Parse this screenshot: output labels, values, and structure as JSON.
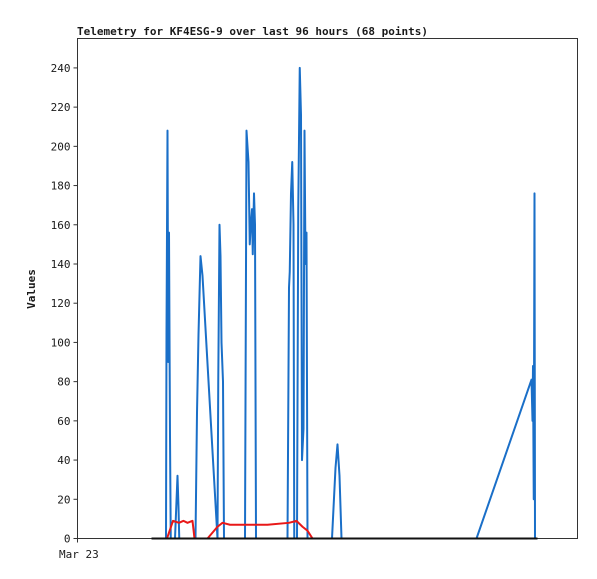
{
  "chart_data": {
    "type": "line",
    "title": "Telemetry for KF4ESG-9 over last 96 hours (68 points)",
    "xlabel": "",
    "ylabel": "Values",
    "x_tick_labels": [
      "Mar 23"
    ],
    "y_ticks": [
      0,
      20,
      40,
      60,
      80,
      100,
      120,
      140,
      160,
      180,
      200,
      220,
      240
    ],
    "xlim": [
      0,
      100
    ],
    "ylim": [
      0,
      255
    ],
    "grid": false,
    "legend": "none",
    "series": [
      {
        "color": "#1a6fc8",
        "points": [
          [
            14.8,
            0
          ],
          [
            17.7,
            0
          ],
          [
            17.8,
            104
          ],
          [
            18.0,
            208
          ],
          [
            18.15,
            90
          ],
          [
            18.3,
            156
          ],
          [
            18.5,
            52
          ],
          [
            18.65,
            0
          ],
          [
            19.5,
            0
          ],
          [
            19.75,
            16
          ],
          [
            20.0,
            32
          ],
          [
            20.2,
            16
          ],
          [
            20.35,
            0
          ],
          [
            23.6,
            0
          ],
          [
            23.9,
            64
          ],
          [
            24.2,
            104
          ],
          [
            24.6,
            144
          ],
          [
            25.0,
            134
          ],
          [
            27.1,
            40
          ],
          [
            28.0,
            0
          ],
          [
            28.15,
            80
          ],
          [
            28.4,
            160
          ],
          [
            28.6,
            144
          ],
          [
            28.8,
            100
          ],
          [
            29.1,
            80
          ],
          [
            29.3,
            0
          ],
          [
            33.5,
            0
          ],
          [
            33.8,
            208
          ],
          [
            34.05,
            198
          ],
          [
            34.2,
            192
          ],
          [
            34.45,
            150
          ],
          [
            34.65,
            160
          ],
          [
            34.9,
            168
          ],
          [
            35.05,
            145
          ],
          [
            35.3,
            176
          ],
          [
            35.5,
            160
          ],
          [
            35.7,
            0
          ],
          [
            42.0,
            0
          ],
          [
            42.3,
            128
          ],
          [
            42.45,
            136
          ],
          [
            42.7,
            176
          ],
          [
            42.95,
            192
          ],
          [
            43.2,
            160
          ],
          [
            43.35,
            0
          ],
          [
            43.9,
            0
          ],
          [
            44.15,
            168
          ],
          [
            44.45,
            240
          ],
          [
            44.7,
            216
          ],
          [
            44.9,
            40
          ],
          [
            45.2,
            56
          ],
          [
            45.4,
            208
          ],
          [
            45.6,
            140
          ],
          [
            45.8,
            156
          ],
          [
            46.0,
            0
          ],
          [
            50.9,
            0
          ],
          [
            51.6,
            36
          ],
          [
            52.0,
            48
          ],
          [
            52.4,
            32
          ],
          [
            52.8,
            0
          ],
          [
            79.8,
            0
          ],
          [
            90.8,
            81
          ],
          [
            91.0,
            60
          ],
          [
            91.1,
            88
          ],
          [
            91.25,
            20
          ],
          [
            91.4,
            176
          ],
          [
            91.5,
            0
          ]
        ]
      },
      {
        "color": "#e81818",
        "points": [
          [
            17.9,
            0
          ],
          [
            19.1,
            9
          ],
          [
            20.3,
            8
          ],
          [
            21.2,
            9
          ],
          [
            22.0,
            8
          ],
          [
            23.0,
            9
          ],
          [
            23.4,
            0
          ],
          [
            26.0,
            0
          ],
          [
            28.0,
            6
          ],
          [
            29.0,
            8
          ],
          [
            30.5,
            7
          ],
          [
            38.0,
            7
          ],
          [
            42.3,
            8
          ],
          [
            43.8,
            9
          ],
          [
            45.0,
            6
          ],
          [
            46.0,
            4
          ],
          [
            47.0,
            0
          ]
        ]
      },
      {
        "color": "#111111",
        "points": [
          [
            14.8,
            0
          ],
          [
            92.0,
            0
          ]
        ]
      }
    ]
  }
}
